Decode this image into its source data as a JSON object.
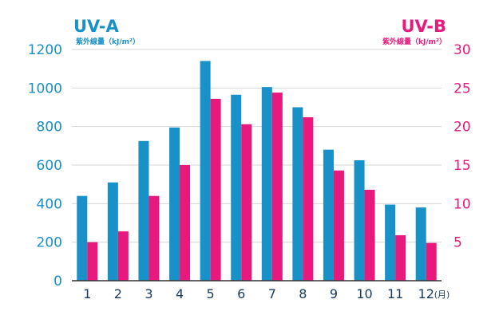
{
  "chart_data": {
    "type": "bar",
    "colors": {
      "uva": "#1891c9",
      "uvb": "#e8197d",
      "axis_text": "#1a3a5c",
      "grid": "#d6d6d6"
    },
    "left_axis": {
      "title": "UV-A",
      "unit": "紫外線量（kJ/m²）",
      "ylim": [
        0,
        1200
      ],
      "ticks": [
        "0",
        "200",
        "400",
        "600",
        "800",
        "1000",
        "1200"
      ]
    },
    "right_axis": {
      "title": "UV-B",
      "unit": "紫外線量（kJ/m²）",
      "ylim": [
        0,
        30
      ],
      "ticks": [
        "5",
        "10",
        "15",
        "20",
        "25",
        "30"
      ]
    },
    "categories": [
      "1",
      "2",
      "3",
      "4",
      "5",
      "6",
      "7",
      "8",
      "9",
      "10",
      "11",
      "12"
    ],
    "x_unit": "(月)",
    "series": [
      {
        "name": "UV-A",
        "axis": "left",
        "values": [
          440,
          510,
          725,
          795,
          1140,
          965,
          1005,
          900,
          680,
          625,
          395,
          380
        ]
      },
      {
        "name": "UV-B",
        "axis": "right",
        "values": [
          5.0,
          6.4,
          11.0,
          15.0,
          23.6,
          20.3,
          24.4,
          21.2,
          14.3,
          11.8,
          5.9,
          4.9
        ]
      }
    ],
    "grid": true
  }
}
